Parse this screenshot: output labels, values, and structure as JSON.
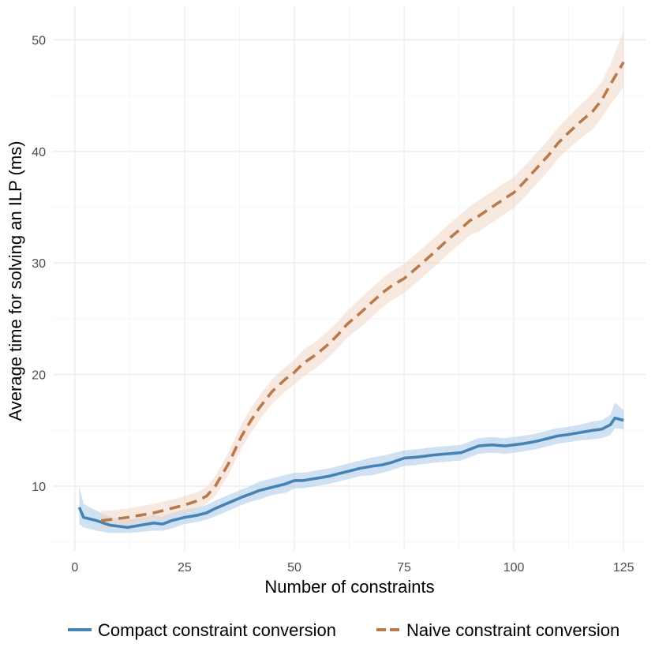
{
  "chart_data": {
    "type": "line",
    "xlabel": "Number of constraints",
    "ylabel": "Average time for solving an ILP (ms)",
    "xlim": [
      -5,
      130
    ],
    "ylim": [
      4.2,
      53
    ],
    "x_ticks": [
      0,
      25,
      50,
      75,
      100,
      125
    ],
    "x_tick_labels": [
      "0",
      "25",
      "50",
      "75",
      "100",
      "125"
    ],
    "y_ticks": [
      10,
      20,
      30,
      40,
      50
    ],
    "y_tick_labels": [
      "10",
      "20",
      "30",
      "40",
      "50"
    ],
    "grid": true,
    "legend_position": "bottom",
    "series": [
      {
        "name": "Compact constraint conversion",
        "color": "#4682b4",
        "band_color": "#a8c8e8",
        "line_style": "solid",
        "x": [
          1,
          2,
          5,
          8,
          10,
          12,
          15,
          18,
          20,
          22,
          25,
          28,
          30,
          32,
          35,
          38,
          40,
          42,
          45,
          48,
          50,
          52,
          55,
          58,
          60,
          62,
          65,
          68,
          70,
          72,
          75,
          78,
          80,
          82,
          85,
          88,
          90,
          92,
          95,
          98,
          100,
          102,
          105,
          108,
          110,
          112,
          115,
          118,
          120,
          122,
          123,
          125
        ],
        "y": [
          8.1,
          7.2,
          6.9,
          6.5,
          6.4,
          6.3,
          6.5,
          6.7,
          6.6,
          6.9,
          7.2,
          7.4,
          7.6,
          8.0,
          8.5,
          9.0,
          9.3,
          9.6,
          9.9,
          10.2,
          10.5,
          10.5,
          10.7,
          10.9,
          11.1,
          11.3,
          11.6,
          11.8,
          11.9,
          12.1,
          12.5,
          12.6,
          12.7,
          12.8,
          12.9,
          13.0,
          13.3,
          13.6,
          13.7,
          13.6,
          13.7,
          13.8,
          14.0,
          14.3,
          14.5,
          14.6,
          14.8,
          15.0,
          15.1,
          15.5,
          16.1,
          15.9
        ],
        "lower": [
          6.6,
          6.3,
          6.0,
          5.8,
          5.8,
          5.8,
          5.9,
          6.0,
          6.0,
          6.2,
          6.6,
          6.8,
          7.0,
          7.3,
          7.8,
          8.3,
          8.6,
          8.8,
          9.2,
          9.4,
          9.8,
          9.8,
          10.0,
          10.2,
          10.4,
          10.6,
          10.9,
          11.0,
          11.2,
          11.4,
          11.8,
          11.9,
          12.0,
          12.1,
          12.2,
          12.3,
          12.6,
          12.9,
          13.0,
          12.9,
          13.0,
          13.1,
          13.3,
          13.6,
          13.8,
          13.9,
          14.1,
          14.2,
          14.3,
          14.6,
          15.2,
          15.1
        ],
        "upper": [
          10.0,
          8.4,
          7.8,
          7.2,
          7.1,
          7.0,
          7.2,
          7.4,
          7.3,
          7.6,
          7.9,
          8.1,
          8.3,
          8.7,
          9.2,
          9.7,
          10.0,
          10.4,
          10.7,
          11.0,
          11.2,
          11.2,
          11.4,
          11.6,
          11.8,
          12.0,
          12.3,
          12.6,
          12.7,
          12.9,
          13.2,
          13.3,
          13.4,
          13.5,
          13.6,
          13.7,
          14.0,
          14.3,
          14.4,
          14.3,
          14.4,
          14.5,
          14.7,
          15.0,
          15.2,
          15.3,
          15.5,
          15.8,
          15.9,
          16.4,
          17.5,
          16.8
        ]
      },
      {
        "name": "Naive constraint conversion",
        "color": "#b87a4b",
        "band_color": "#f0d7c6",
        "line_style": "dashed",
        "x": [
          6,
          8,
          10,
          12,
          15,
          18,
          20,
          22,
          25,
          28,
          30,
          32,
          35,
          38,
          40,
          42,
          45,
          48,
          50,
          52,
          55,
          58,
          60,
          62,
          65,
          68,
          70,
          72,
          75,
          78,
          80,
          82,
          85,
          88,
          90,
          92,
          95,
          98,
          100,
          102,
          105,
          108,
          110,
          112,
          115,
          118,
          120,
          122,
          125
        ],
        "y": [
          6.9,
          7.0,
          7.1,
          7.2,
          7.4,
          7.6,
          7.8,
          8.0,
          8.3,
          8.7,
          9.1,
          10.0,
          12.0,
          14.5,
          15.8,
          17.0,
          18.5,
          19.6,
          20.2,
          21.0,
          21.8,
          22.8,
          23.6,
          24.5,
          25.5,
          26.6,
          27.3,
          27.9,
          28.6,
          29.6,
          30.3,
          31.0,
          32.1,
          33.1,
          33.8,
          34.2,
          35.0,
          35.8,
          36.3,
          37.1,
          38.4,
          39.7,
          40.7,
          41.5,
          42.6,
          43.6,
          44.6,
          46.0,
          48.0
        ],
        "lower": [
          6.2,
          6.3,
          6.4,
          6.5,
          6.7,
          6.9,
          7.1,
          7.3,
          7.6,
          8.0,
          8.4,
          9.1,
          11.0,
          13.4,
          14.7,
          15.9,
          17.4,
          18.5,
          19.1,
          19.8,
          20.6,
          21.6,
          22.4,
          23.3,
          24.2,
          25.3,
          26.0,
          26.6,
          27.3,
          28.3,
          29.0,
          29.7,
          30.8,
          31.8,
          32.5,
          32.8,
          33.6,
          34.4,
          34.9,
          35.7,
          37.0,
          38.3,
          39.3,
          40.1,
          41.1,
          42.0,
          43.0,
          44.2,
          45.8
        ],
        "upper": [
          7.8,
          7.8,
          7.9,
          8.0,
          8.2,
          8.4,
          8.6,
          8.8,
          9.1,
          9.5,
          9.9,
          10.9,
          13.0,
          15.6,
          16.9,
          18.1,
          19.6,
          20.7,
          21.3,
          22.2,
          23.0,
          24.0,
          24.8,
          25.7,
          26.8,
          27.9,
          28.6,
          29.2,
          29.9,
          30.9,
          31.6,
          32.3,
          33.4,
          34.4,
          35.1,
          35.6,
          36.4,
          37.2,
          37.7,
          38.5,
          39.8,
          41.1,
          42.1,
          42.9,
          44.1,
          45.2,
          46.2,
          47.8,
          50.8
        ]
      }
    ]
  }
}
